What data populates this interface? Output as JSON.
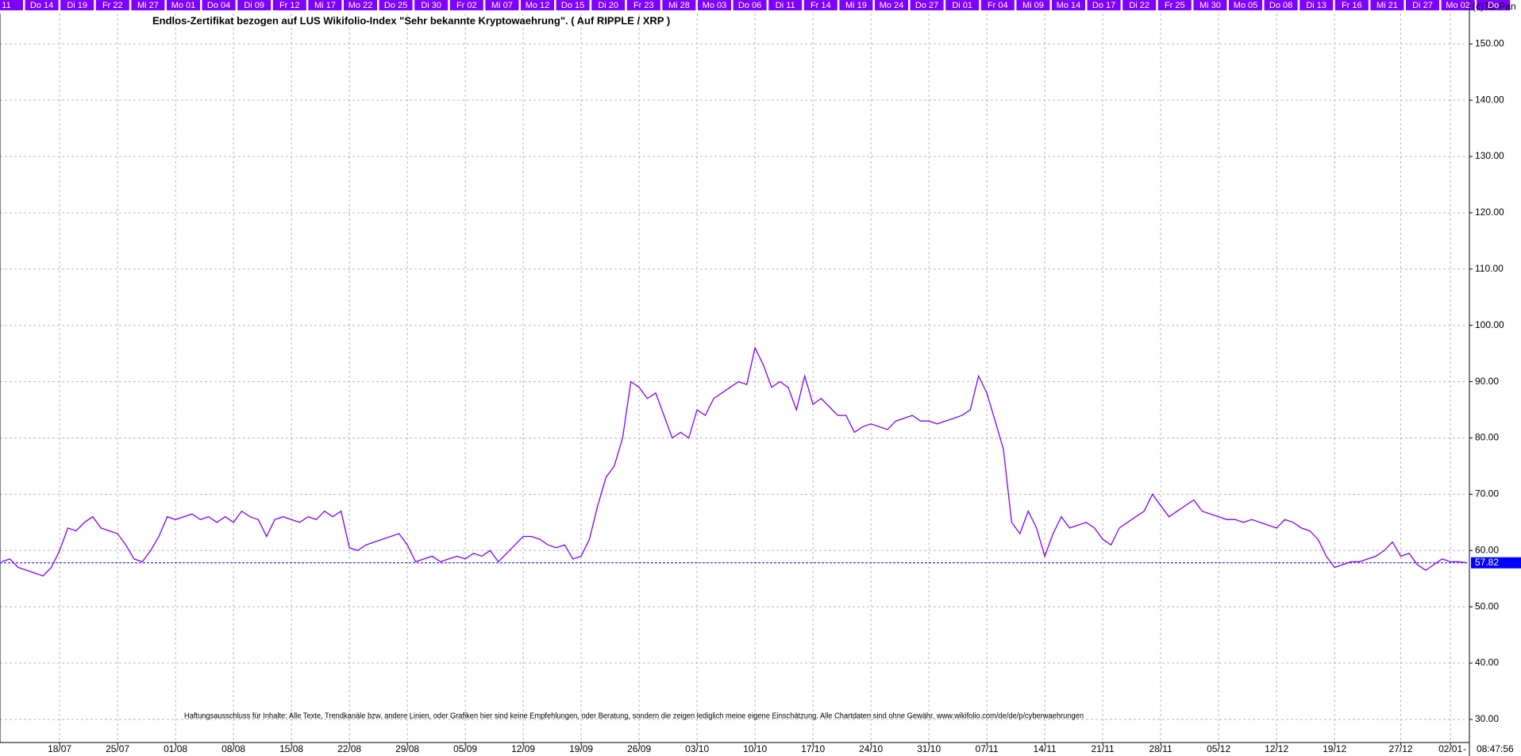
{
  "chart_data": {
    "type": "line",
    "title": "Endlos-Zertifikat bezogen auf LUS Wikifolio-Index \"Sehr bekannte Kryptowaehrung\". ( Auf RIPPLE / XRP )",
    "copyright": "(c)Tai-Pan",
    "time": "08:47:56",
    "corner_mark": "-",
    "disclaimer": "Haftungsausschluss für Inhalte: Alle Texte, Trendkanäle bzw. andere Linien, oder Grafiken hier sind keine Empfehlungen, oder Beratung, sondern die zeigen lediglich meine eigene Einschätzung. Alle Chartdaten sind ohne Gewähr. www.wikifolio.com/de/de/p/cyberwaehrungen",
    "top_labels": [
      "11",
      "Do 14",
      "Di 19",
      "Fr 22",
      "Mi 27",
      "Mo 01",
      "Do 04",
      "Di 09",
      "Fr 12",
      "Mi 17",
      "Mo 22",
      "Do 25",
      "Di 30",
      "Fr 02",
      "Mi 07",
      "Mo 12",
      "Do 15",
      "Di 20",
      "Fr 23",
      "Mi 28",
      "Mo 03",
      "Do 06",
      "Di 11",
      "Fr 14",
      "Mi 19",
      "Mo 24",
      "Do 27",
      "Di 01",
      "Fr 04",
      "Mi 09",
      "Mo 14",
      "Do 17",
      "Di 22",
      "Fr 25",
      "Mi 30",
      "Mo 05",
      "Do 08",
      "Di 13",
      "Fr 16",
      "Mi 21",
      "Di 27",
      "Mo 02",
      "Do"
    ],
    "top_label_color": "#8000ff",
    "color": "#8000ff",
    "x": [
      0,
      1,
      2,
      3,
      4,
      5,
      6,
      7,
      8,
      9,
      10,
      11,
      12,
      13,
      14,
      15,
      16,
      17,
      18,
      19,
      20,
      21,
      22,
      23,
      24,
      25,
      26,
      27,
      28,
      29,
      30,
      31,
      32,
      33,
      34,
      35,
      36,
      37,
      38,
      39,
      40,
      41,
      42,
      43,
      44,
      45,
      46,
      47,
      48,
      49,
      50,
      51,
      52,
      53,
      54,
      55,
      56,
      57,
      58,
      59,
      60,
      61,
      62,
      63,
      64,
      65,
      66,
      67,
      68,
      69,
      70,
      71,
      72,
      73,
      74,
      75,
      76,
      77,
      78,
      79,
      80,
      81,
      82,
      83,
      84,
      85,
      86,
      87,
      88,
      89,
      90,
      91,
      92,
      93,
      94,
      95,
      96,
      97,
      98,
      99,
      100,
      101,
      102,
      103,
      104,
      105,
      106,
      107,
      108,
      109,
      110,
      111,
      112,
      113,
      114,
      115,
      116,
      117,
      118,
      119,
      120,
      121,
      122,
      123,
      124,
      125,
      126,
      127,
      128,
      129,
      130,
      131,
      132,
      133,
      134,
      135,
      136,
      137,
      138,
      139,
      140,
      141,
      142,
      143,
      144,
      145,
      146,
      147,
      148,
      149,
      150,
      151,
      152,
      153,
      154,
      155,
      156,
      157,
      158,
      159,
      160,
      161,
      162,
      163,
      164,
      165,
      166,
      167,
      168,
      169,
      170,
      171,
      172,
      173,
      174,
      175,
      176,
      177
    ],
    "values": [
      58,
      58.5,
      57,
      56.5,
      56,
      55.5,
      57,
      60,
      64,
      63.5,
      65,
      66,
      64,
      63.5,
      63,
      61,
      58.5,
      58,
      60,
      62.5,
      66,
      65.5,
      66,
      66.5,
      65.5,
      66,
      65,
      66,
      65,
      67,
      66,
      65.5,
      62.5,
      65.5,
      66,
      65.5,
      65,
      66,
      65.5,
      67,
      66,
      67,
      60.5,
      60,
      61,
      61.5,
      62,
      62.5,
      63,
      61,
      58,
      58.5,
      59,
      58,
      58.5,
      59,
      58.5,
      59.5,
      59,
      60,
      58,
      59.5,
      61,
      62.5,
      62.5,
      62,
      61,
      60.5,
      61,
      58.5,
      59,
      62,
      68,
      73,
      75,
      80,
      90,
      89,
      87,
      88,
      84,
      80,
      81,
      80,
      85,
      84,
      87,
      88,
      89,
      90,
      89.5,
      96,
      93,
      89,
      90,
      89,
      85,
      91,
      86,
      87,
      85.5,
      84,
      84,
      81,
      82,
      82.5,
      82,
      81.5,
      83,
      83.5,
      84,
      83,
      83,
      82.5,
      83,
      83.5,
      84,
      85,
      91,
      88,
      83,
      78,
      65,
      63,
      67,
      64,
      59,
      63,
      66,
      64,
      64.5,
      65,
      64,
      62,
      61,
      64,
      65,
      66,
      67,
      70,
      68,
      66,
      67,
      68,
      69,
      67,
      66.5,
      66,
      65.5,
      65.5,
      65,
      65.5,
      65,
      64.5,
      64,
      65.5,
      65,
      64,
      63.5,
      62,
      59,
      57,
      57.5,
      58,
      58,
      58.5,
      59,
      60,
      61.5,
      59,
      59.5,
      57.5,
      56.5,
      57.5,
      58.5,
      58,
      58,
      57.82
    ],
    "last_value": 57.82,
    "last_value_color": "#0000ff",
    "xlim": [
      -0.2,
      177
    ],
    "xticks": [
      {
        "value": 7,
        "label": "18/07"
      },
      {
        "value": 14,
        "label": "25/07"
      },
      {
        "value": 21,
        "label": "01/08"
      },
      {
        "value": 28,
        "label": "08/08"
      },
      {
        "value": 35,
        "label": "15/08"
      },
      {
        "value": 42,
        "label": "22/08"
      },
      {
        "value": 49,
        "label": "29/08"
      },
      {
        "value": 56,
        "label": "05/09"
      },
      {
        "value": 63,
        "label": "12/09"
      },
      {
        "value": 70,
        "label": "19/09"
      },
      {
        "value": 77,
        "label": "26/09"
      },
      {
        "value": 84,
        "label": "03/10"
      },
      {
        "value": 91,
        "label": "10/10"
      },
      {
        "value": 98,
        "label": "17/10"
      },
      {
        "value": 105,
        "label": "24/10"
      },
      {
        "value": 112,
        "label": "31/10"
      },
      {
        "value": 119,
        "label": "07/11"
      },
      {
        "value": 126,
        "label": "14/11"
      },
      {
        "value": 133,
        "label": "21/11"
      },
      {
        "value": 140,
        "label": "28/11"
      },
      {
        "value": 147,
        "label": "05/12"
      },
      {
        "value": 154,
        "label": "12/12"
      },
      {
        "value": 161,
        "label": "19/12"
      },
      {
        "value": 169,
        "label": "27/12"
      },
      {
        "value": 175,
        "label": "02/01"
      }
    ],
    "ylim": [
      25.9,
      155.4
    ],
    "yticks": [
      {
        "value": 30,
        "label": "30.00"
      },
      {
        "value": 40,
        "label": "40.00"
      },
      {
        "value": 50,
        "label": "50.00"
      },
      {
        "value": 60,
        "label": "60.00"
      },
      {
        "value": 70,
        "label": "70.00"
      },
      {
        "value": 80,
        "label": "80.00"
      },
      {
        "value": 90,
        "label": "90.00"
      },
      {
        "value": 100,
        "label": "100.00"
      },
      {
        "value": 110,
        "label": "110.00"
      },
      {
        "value": 120,
        "label": "120.00"
      },
      {
        "value": 130,
        "label": "130.00"
      },
      {
        "value": 140,
        "label": "140.00"
      },
      {
        "value": 150,
        "label": "150.00"
      }
    ],
    "grid": true
  }
}
